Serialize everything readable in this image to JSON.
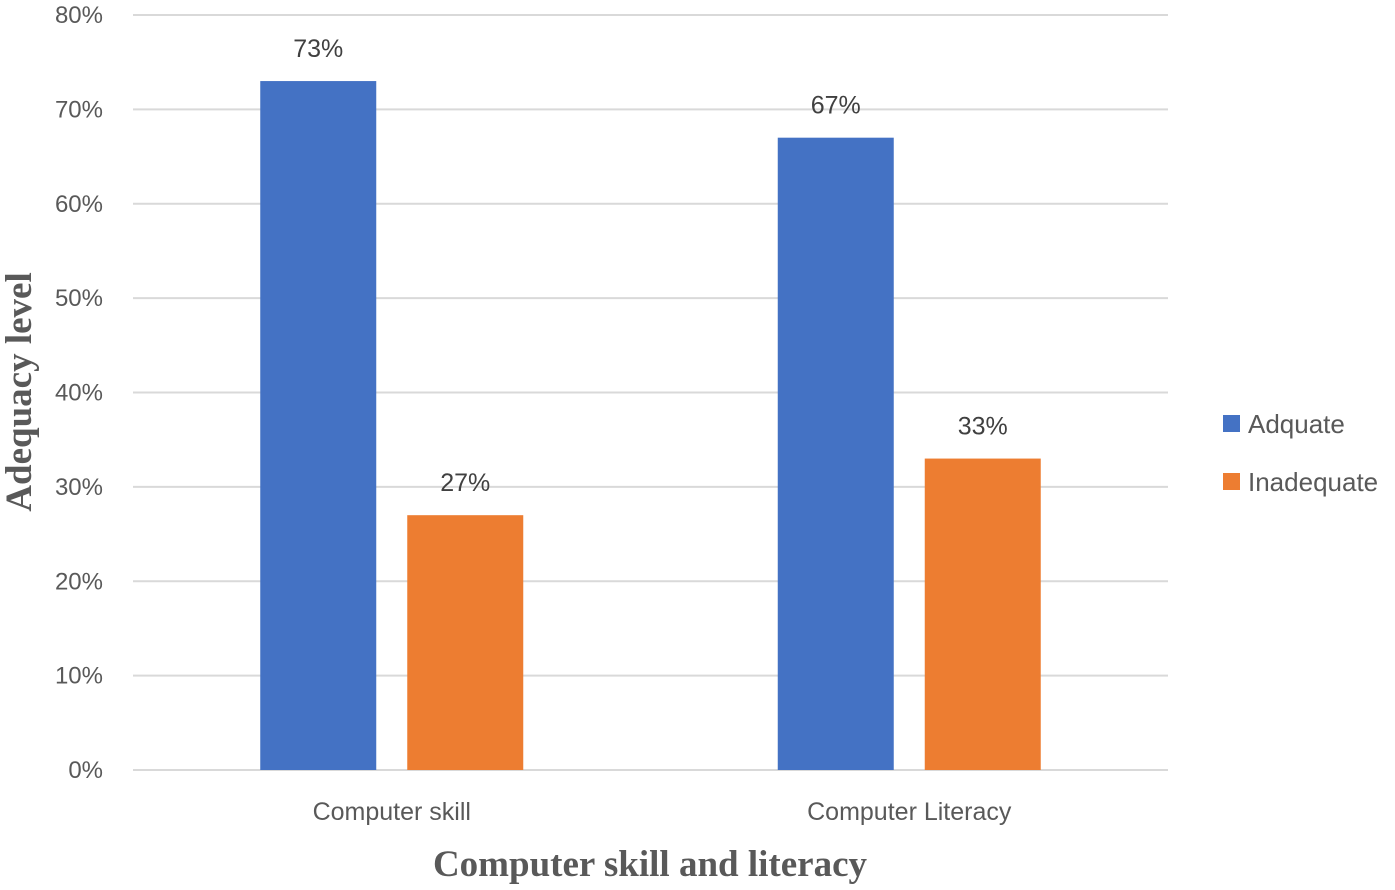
{
  "chart_data": {
    "type": "bar",
    "categories": [
      "Computer skill",
      "Computer Literacy"
    ],
    "series": [
      {
        "name": "Adquate",
        "values": [
          73,
          67
        ],
        "labels": [
          "73%",
          "67%"
        ],
        "color": "#4472C4"
      },
      {
        "name": "Inadequate",
        "values": [
          27,
          33
        ],
        "labels": [
          "27%",
          "33%"
        ],
        "color": "#ED7D31"
      }
    ],
    "title": "",
    "xlabel": "Computer skill and literacy",
    "ylabel": "Adequacy level",
    "ylim": [
      0,
      80
    ],
    "yticks": [
      "0%",
      "10%",
      "20%",
      "30%",
      "40%",
      "50%",
      "60%",
      "70%",
      "80%"
    ],
    "grid": true,
    "gridline_color": "#D9D9D9",
    "legend_position": "right"
  }
}
